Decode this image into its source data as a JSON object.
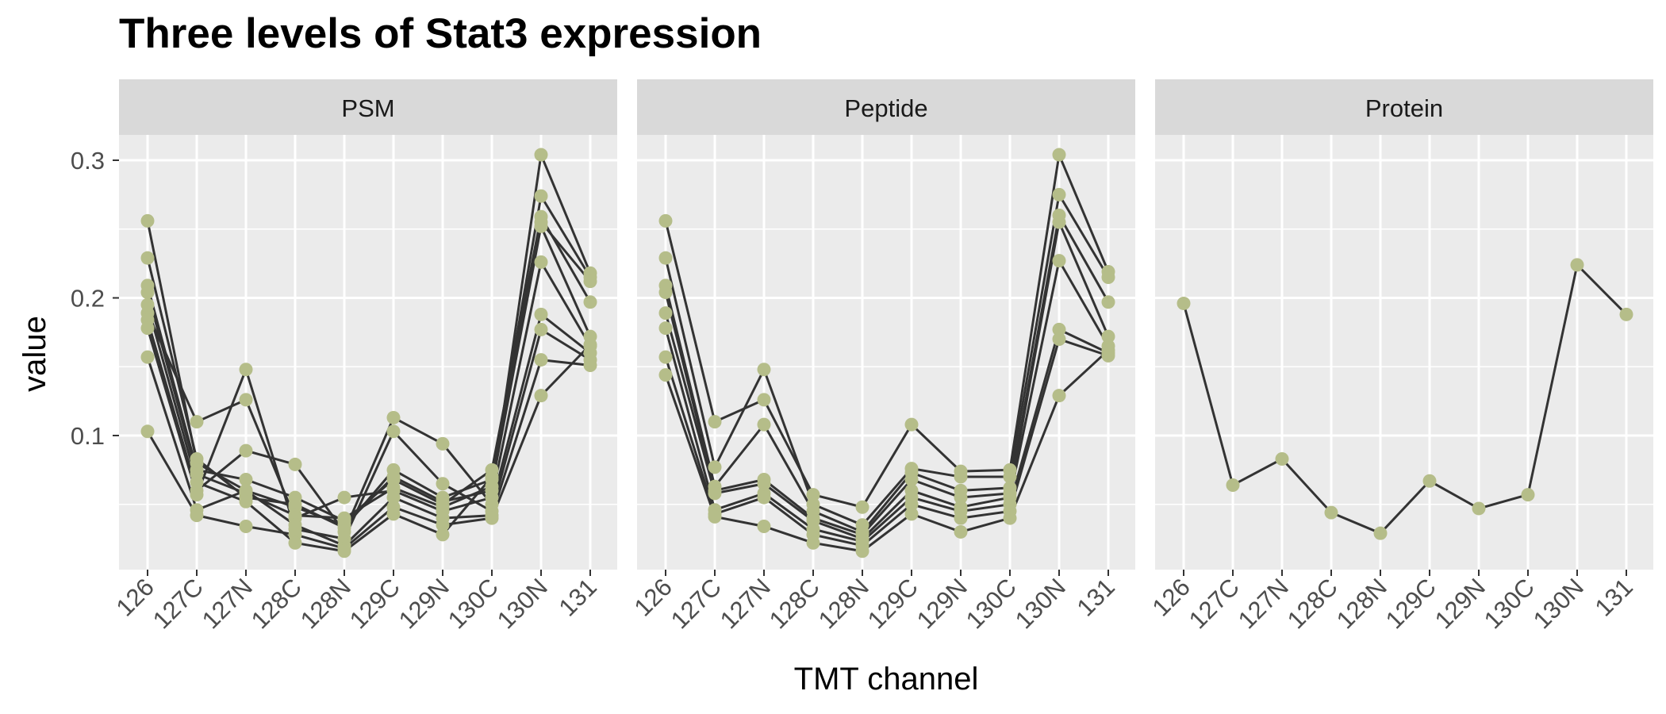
{
  "chart_data": {
    "type": "line",
    "title": "Three levels of Stat3 expression",
    "xlabel": "TMT channel",
    "ylabel": "value",
    "categories": [
      "126",
      "127C",
      "127N",
      "128C",
      "128N",
      "129C",
      "129N",
      "130C",
      "130N",
      "131"
    ],
    "ylim": [
      0.0,
      0.35
    ],
    "yticks": [
      0.1,
      0.2,
      0.3
    ],
    "ytick_labels": [
      "0.1",
      "0.2",
      "0.3"
    ],
    "grid": true,
    "colors": {
      "panel_bg": "#ebebeb",
      "strip_bg": "#d9d9d9",
      "grid": "#ffffff",
      "line": "#333333",
      "point": "#b5bd89"
    },
    "facets": [
      {
        "name": "PSM",
        "series": [
          {
            "values": [
              0.256,
              0.08,
              0.06,
              0.048,
              0.035,
              0.07,
              0.052,
              0.06,
              0.304,
              0.218
            ]
          },
          {
            "values": [
              0.229,
              0.083,
              0.055,
              0.05,
              0.033,
              0.075,
              0.055,
              0.068,
              0.274,
              0.215
            ]
          },
          {
            "values": [
              0.209,
              0.075,
              0.068,
              0.055,
              0.038,
              0.068,
              0.05,
              0.075,
              0.259,
              0.197
            ]
          },
          {
            "values": [
              0.204,
              0.072,
              0.058,
              0.042,
              0.04,
              0.062,
              0.048,
              0.063,
              0.252,
              0.172
            ]
          },
          {
            "values": [
              0.189,
              0.11,
              0.126,
              0.04,
              0.055,
              0.06,
              0.045,
              0.055,
              0.226,
              0.165
            ]
          },
          {
            "values": [
              0.184,
              0.06,
              0.089,
              0.079,
              0.03,
              0.113,
              0.094,
              0.05,
              0.188,
              0.16
            ]
          },
          {
            "values": [
              0.178,
              0.057,
              0.148,
              0.032,
              0.025,
              0.103,
              0.065,
              0.045,
              0.177,
              0.155
            ]
          },
          {
            "values": [
              0.157,
              0.046,
              0.06,
              0.035,
              0.02,
              0.055,
              0.04,
              0.042,
              0.155,
              0.151
            ]
          },
          {
            "values": [
              0.103,
              0.042,
              0.034,
              0.028,
              0.018,
              0.048,
              0.035,
              0.04,
              0.129,
              0.166
            ]
          },
          {
            "values": [
              0.195,
              0.066,
              0.052,
              0.022,
              0.016,
              0.043,
              0.028,
              0.07,
              0.255,
              0.212
            ]
          }
        ]
      },
      {
        "name": "Peptide",
        "series": [
          {
            "values": [
              0.256,
              0.11,
              0.126,
              0.057,
              0.048,
              0.108,
              0.074,
              0.075,
              0.304,
              0.219
            ]
          },
          {
            "values": [
              0.229,
              0.077,
              0.148,
              0.05,
              0.035,
              0.076,
              0.07,
              0.07,
              0.275,
              0.215
            ]
          },
          {
            "values": [
              0.209,
              0.063,
              0.108,
              0.045,
              0.03,
              0.073,
              0.06,
              0.062,
              0.26,
              0.197
            ]
          },
          {
            "values": [
              0.204,
              0.06,
              0.068,
              0.04,
              0.028,
              0.068,
              0.055,
              0.058,
              0.255,
              0.172
            ]
          },
          {
            "values": [
              0.189,
              0.058,
              0.065,
              0.038,
              0.025,
              0.06,
              0.048,
              0.055,
              0.227,
              0.165
            ]
          },
          {
            "values": [
              0.178,
              0.046,
              0.058,
              0.032,
              0.023,
              0.055,
              0.045,
              0.05,
              0.177,
              0.16
            ]
          },
          {
            "values": [
              0.157,
              0.043,
              0.055,
              0.028,
              0.02,
              0.05,
              0.04,
              0.045,
              0.17,
              0.158
            ]
          },
          {
            "values": [
              0.144,
              0.041,
              0.034,
              0.022,
              0.016,
              0.043,
              0.03,
              0.04,
              0.129,
              0.162
            ]
          }
        ]
      },
      {
        "name": "Protein",
        "series": [
          {
            "values": [
              0.196,
              0.064,
              0.083,
              0.044,
              0.029,
              0.067,
              0.047,
              0.057,
              0.224,
              0.188
            ]
          }
        ]
      }
    ]
  }
}
